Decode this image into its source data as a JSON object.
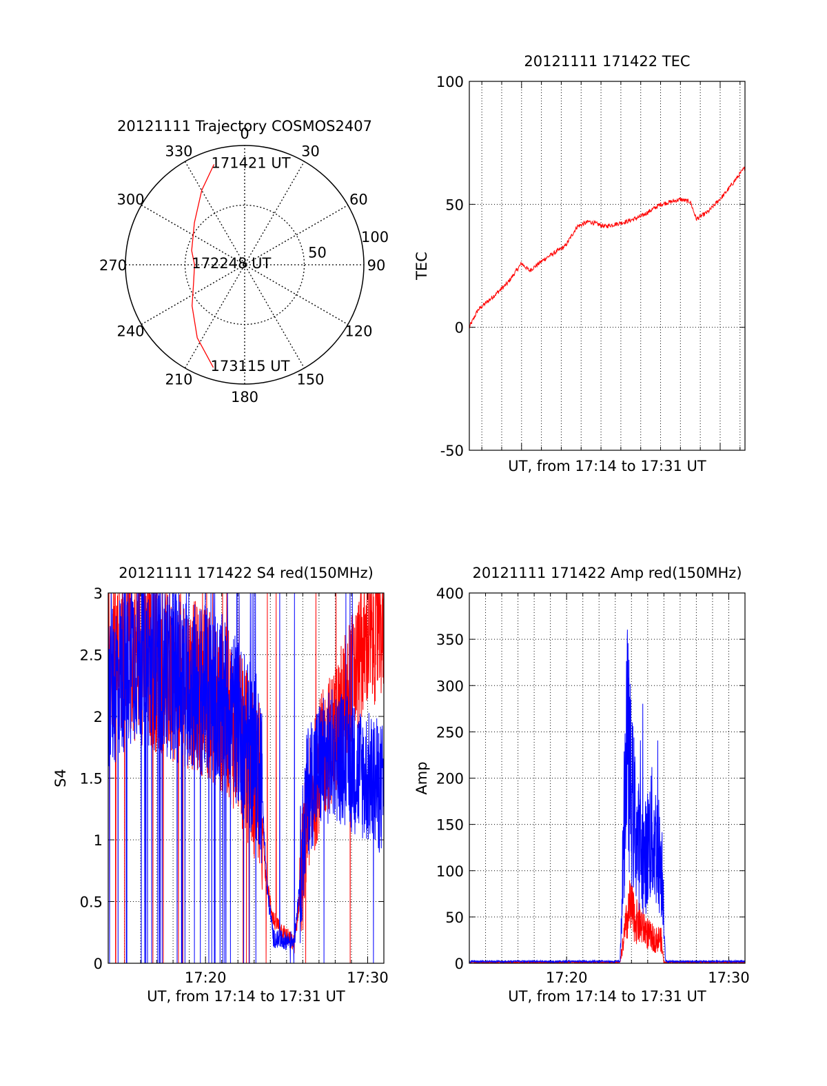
{
  "chart_data": [
    {
      "type": "polar",
      "title": "20121111 Trajectory COSMOS2407",
      "angle_labels": [
        "0",
        "30",
        "60",
        "90",
        "120",
        "150",
        "180",
        "210",
        "240",
        "270",
        "300",
        "330"
      ],
      "radial_labels": [
        "50",
        "100"
      ],
      "rlim": [
        0,
        100
      ],
      "grid": true,
      "annotations": [
        {
          "text": "171421 UT",
          "az": 343,
          "r": 88
        },
        {
          "text": "172248 UT",
          "az": 270,
          "r": 42
        },
        {
          "text": "173115 UT",
          "az": 197,
          "r": 90
        }
      ],
      "series": [
        {
          "color": "#ff0000",
          "points": [
            {
              "az": 343,
              "r": 88
            },
            {
              "az": 330,
              "r": 72
            },
            {
              "az": 310,
              "r": 55
            },
            {
              "az": 285,
              "r": 46
            },
            {
              "az": 270,
              "r": 42
            },
            {
              "az": 252,
              "r": 45
            },
            {
              "az": 232,
              "r": 56
            },
            {
              "az": 213,
              "r": 73
            },
            {
              "az": 197,
              "r": 90
            }
          ]
        }
      ]
    },
    {
      "type": "line",
      "title": "20121111 171422 TEC",
      "xlabel": "UT, from 17:14 to 17:31 UT",
      "ylabel": "TEC",
      "ylim": [
        -50,
        100
      ],
      "yticks": [
        "-50",
        "0",
        "50",
        "100"
      ],
      "xlim_minutes": [
        17.37,
        31.25
      ],
      "grid": true,
      "series": [
        {
          "color": "#ff0000",
          "x": [
            17.37,
            17.8,
            18.5,
            19.3,
            20.0,
            20.4,
            21.2,
            22.2,
            22.8,
            23.4,
            24.2,
            25.3,
            26.0,
            27.0,
            28.0,
            28.5,
            28.8,
            29.4,
            30.2,
            31.25
          ],
          "y": [
            0,
            7,
            12,
            18,
            26,
            23,
            28,
            33,
            41,
            43,
            41,
            43,
            45,
            50,
            52,
            51,
            44,
            47,
            54,
            65
          ]
        }
      ]
    },
    {
      "type": "line",
      "title": "20121111 171422 S4 red(150MHz)",
      "xlabel": "UT, from 17:14 to 17:31 UT",
      "ylabel": "S4",
      "ylim": [
        0,
        3
      ],
      "yticks": [
        "0",
        "0.5",
        "1",
        "1.5",
        "2",
        "2.5",
        "3"
      ],
      "xticks": [
        "17:20",
        "17:30"
      ],
      "xlim_minutes": [
        14.0,
        31.0
      ],
      "grid": true,
      "series": [
        {
          "color": "#ff0000",
          "x": [
            14.0,
            15.5,
            17.0,
            18.5,
            20.0,
            21.5,
            22.5,
            23.4,
            23.7,
            24.2,
            25.0,
            25.5,
            26.3,
            27.0,
            28.0,
            29.0,
            30.0,
            31.0
          ],
          "y": [
            2.6,
            2.5,
            2.4,
            2.3,
            2.2,
            2.0,
            1.7,
            1.4,
            0.7,
            0.35,
            0.22,
            0.15,
            1.2,
            1.6,
            1.9,
            2.3,
            2.6,
            2.7
          ]
        },
        {
          "color": "#0000ff",
          "x": [
            14.0,
            15.5,
            17.0,
            18.5,
            20.0,
            21.5,
            22.5,
            23.4,
            23.8,
            24.2,
            25.0,
            25.5,
            26.3,
            27.0,
            28.0,
            29.0,
            30.0,
            31.0
          ],
          "y": [
            2.2,
            2.5,
            2.4,
            2.3,
            2.2,
            2.1,
            1.8,
            1.6,
            0.6,
            0.2,
            0.18,
            0.2,
            1.4,
            1.6,
            1.7,
            1.6,
            1.5,
            1.4
          ]
        }
      ]
    },
    {
      "type": "line",
      "title": "20121111 171422 Amp red(150MHz)",
      "xlabel": "UT, from 17:14 to 17:31 UT",
      "ylabel": "Amp",
      "ylim": [
        0,
        400
      ],
      "yticks": [
        "0",
        "50",
        "100",
        "150",
        "200",
        "250",
        "300",
        "350",
        "400"
      ],
      "xticks": [
        "17:20",
        "17:30"
      ],
      "xlim_minutes": [
        14.0,
        31.0
      ],
      "grid": true,
      "series": [
        {
          "color": "#ff0000",
          "x": [
            14.0,
            23.3,
            23.6,
            23.9,
            24.3,
            24.7,
            25.1,
            25.5,
            25.8,
            26.0,
            31.0
          ],
          "y": [
            1,
            1,
            35,
            60,
            45,
            40,
            30,
            25,
            28,
            1,
            1
          ]
        },
        {
          "color": "#0000ff",
          "x": [
            14.0,
            23.3,
            23.5,
            23.7,
            24.0,
            24.4,
            24.8,
            25.2,
            25.6,
            25.9,
            26.1,
            31.0
          ],
          "y": [
            2,
            2,
            120,
            250,
            180,
            130,
            110,
            140,
            125,
            100,
            2,
            2
          ]
        }
      ]
    }
  ]
}
